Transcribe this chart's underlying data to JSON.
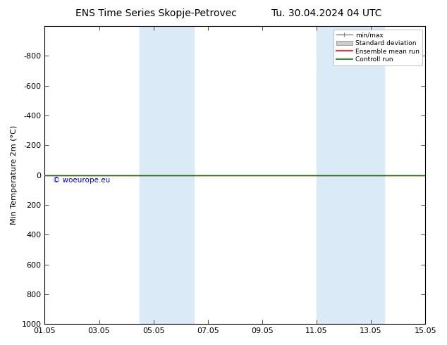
{
  "title_left": "ENS Time Series Skopje-Petrovec",
  "title_right": "Tu. 30.04.2024 04 UTC",
  "ylabel": "Min Temperature 2m (°C)",
  "ylim": [
    -1000,
    1000
  ],
  "yticks": [
    -800,
    -600,
    -400,
    -200,
    0,
    200,
    400,
    600,
    800,
    1000
  ],
  "xtick_labels": [
    "01.05",
    "03.05",
    "05.05",
    "07.05",
    "09.05",
    "11.05",
    "13.05",
    "15.05"
  ],
  "xtick_positions": [
    0,
    2,
    4,
    6,
    8,
    10,
    12,
    14
  ],
  "xlim": [
    0,
    14
  ],
  "shaded_bands": [
    {
      "x_start": 3.5,
      "x_end": 5.5,
      "color": "#daeaf7"
    },
    {
      "x_start": 10.0,
      "x_end": 12.5,
      "color": "#daeaf7"
    }
  ],
  "ensemble_mean_y": 0,
  "control_run_y": 0,
  "ensemble_mean_color": "#ff0000",
  "control_run_color": "#008000",
  "watermark_text": "© woeurope.eu",
  "watermark_color": "#0000cc",
  "legend_entries": [
    "min/max",
    "Standard deviation",
    "Ensemble mean run",
    "Controll run"
  ],
  "background_color": "#ffffff",
  "plot_bg_color": "#ffffff",
  "title_fontsize": 10,
  "axis_label_fontsize": 8,
  "tick_fontsize": 8
}
